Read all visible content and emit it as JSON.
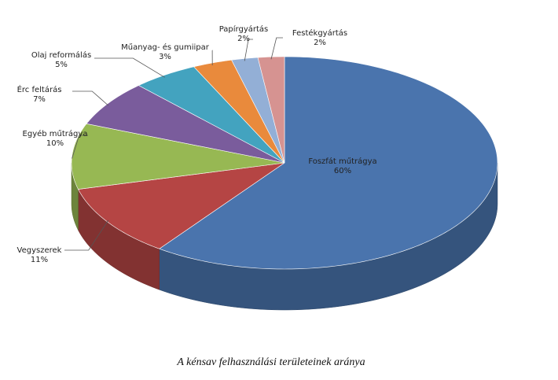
{
  "chart_data": {
    "type": "pie",
    "title": "A kénsav felhasználási területeinek aránya",
    "categories": [
      "Foszfát műtrágya",
      "Vegyszerek",
      "Egyéb műtrágya",
      "Érc feltárás",
      "Olaj reformálás",
      "Műanyag- és gumiipar",
      "Papírgyártás",
      "Festékgyártás"
    ],
    "values": [
      60,
      11,
      10,
      7,
      5,
      3,
      2,
      2
    ],
    "value_labels": [
      "60%",
      "11%",
      "10%",
      "7%",
      "5%",
      "3%",
      "2%",
      "2%"
    ],
    "colors": [
      "#4a74ad",
      "#b54544",
      "#97b853",
      "#7a5c9c",
      "#43a3bf",
      "#e98a3c",
      "#93afd6",
      "#d69391"
    ]
  }
}
